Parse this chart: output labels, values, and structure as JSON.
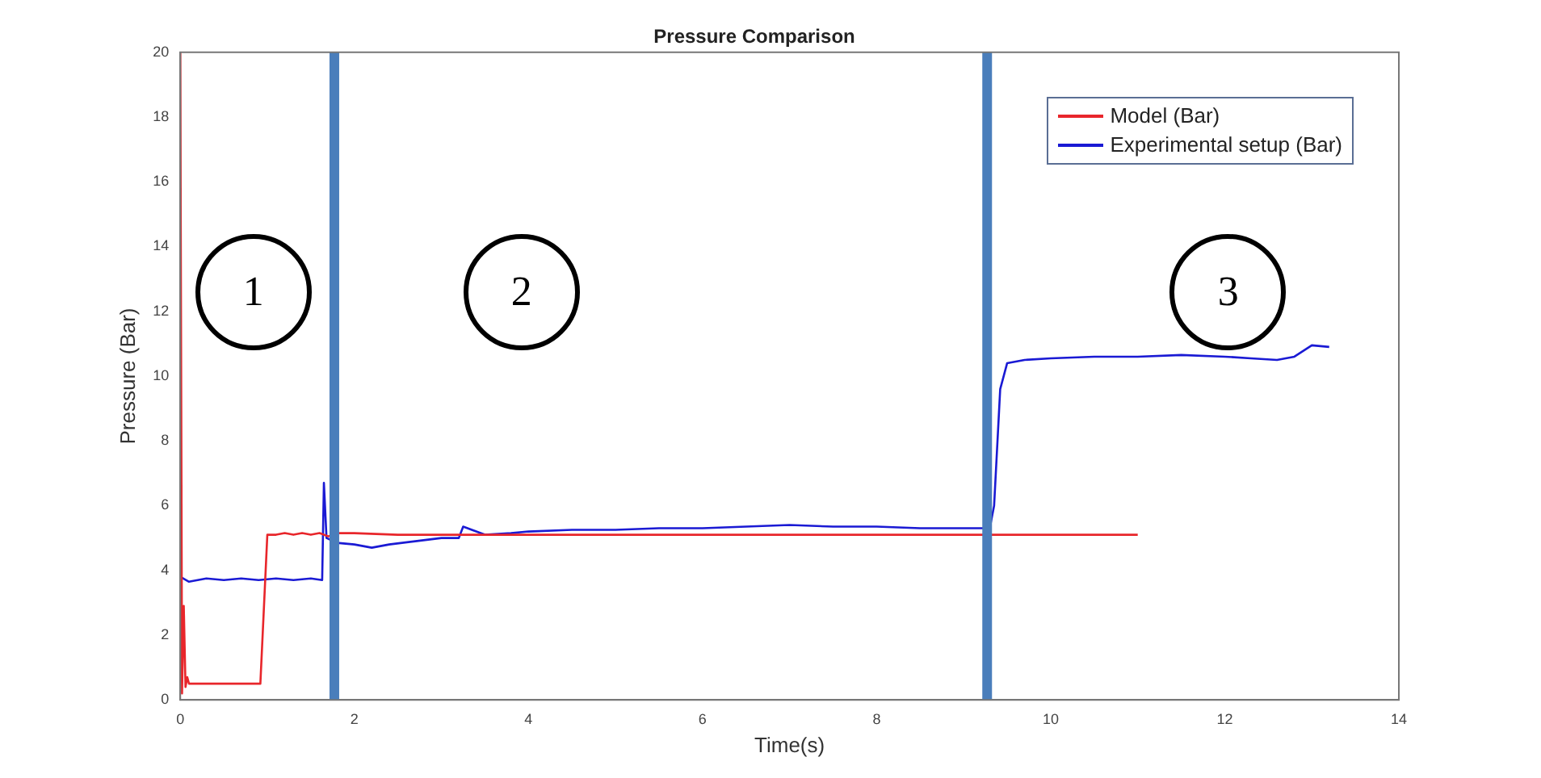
{
  "chart_data": {
    "type": "line",
    "title": "Pressure Comparison",
    "xlabel": "Time(s)",
    "ylabel": "Pressure (Bar)",
    "xlim": [
      0,
      14
    ],
    "xticks": [
      0,
      2,
      4,
      6,
      8,
      10,
      12,
      14
    ],
    "ylim": [
      0,
      20
    ],
    "yticks": [
      0,
      2,
      4,
      6,
      8,
      10,
      12,
      14,
      16,
      18,
      20
    ],
    "grid": false,
    "legend": "top right",
    "marker": "none",
    "line_style": "solid",
    "series": [
      {
        "name": "Model (Bar)",
        "color": "#e8262b",
        "x": [
          0,
          0.02,
          0.04,
          0.06,
          0.08,
          0.1,
          0.92,
          1.0,
          1.1,
          1.2,
          1.3,
          1.4,
          1.5,
          1.6,
          1.7,
          1.8,
          2.0,
          2.5,
          3.0,
          11
        ],
        "values": [
          20,
          0.2,
          2.9,
          0.4,
          0.7,
          0.5,
          0.5,
          5.1,
          5.1,
          5.15,
          5.1,
          5.15,
          5.1,
          5.15,
          5.05,
          5.15,
          5.15,
          5.1,
          5.1,
          5.1
        ]
      },
      {
        "name": "Experimental setup (Bar)",
        "color": "#1a1ad4",
        "x": [
          0,
          0.1,
          0.3,
          0.5,
          0.7,
          0.9,
          1.1,
          1.3,
          1.5,
          1.63,
          1.65,
          1.68,
          1.8,
          2.0,
          2.2,
          2.4,
          2.7,
          3.0,
          3.2,
          3.25,
          3.5,
          3.8,
          4.0,
          4.5,
          5.0,
          5.5,
          6.0,
          6.5,
          7.0,
          7.5,
          8.0,
          8.5,
          9.0,
          9.3,
          9.35,
          9.42,
          9.5,
          9.7,
          10.0,
          10.5,
          11.0,
          11.5,
          12.0,
          12.3,
          12.6,
          12.8,
          13.0,
          13.2
        ],
        "values": [
          3.8,
          3.65,
          3.75,
          3.7,
          3.75,
          3.7,
          3.75,
          3.7,
          3.75,
          3.7,
          6.7,
          5.0,
          4.85,
          4.8,
          4.7,
          4.8,
          4.9,
          5.0,
          5.0,
          5.35,
          5.1,
          5.15,
          5.2,
          5.25,
          5.25,
          5.3,
          5.3,
          5.35,
          5.4,
          5.35,
          5.35,
          5.3,
          5.3,
          5.3,
          6.0,
          9.6,
          10.4,
          10.5,
          10.55,
          10.6,
          10.6,
          10.65,
          10.6,
          10.55,
          10.5,
          10.6,
          10.95,
          10.9
        ]
      }
    ],
    "ref_lines": [
      {
        "axis": "x",
        "value": 1.77,
        "color": "#4a7ebb"
      },
      {
        "axis": "x",
        "value": 9.27,
        "color": "#4a7ebb"
      }
    ],
    "annotations": [
      "1",
      "2",
      "3"
    ]
  }
}
